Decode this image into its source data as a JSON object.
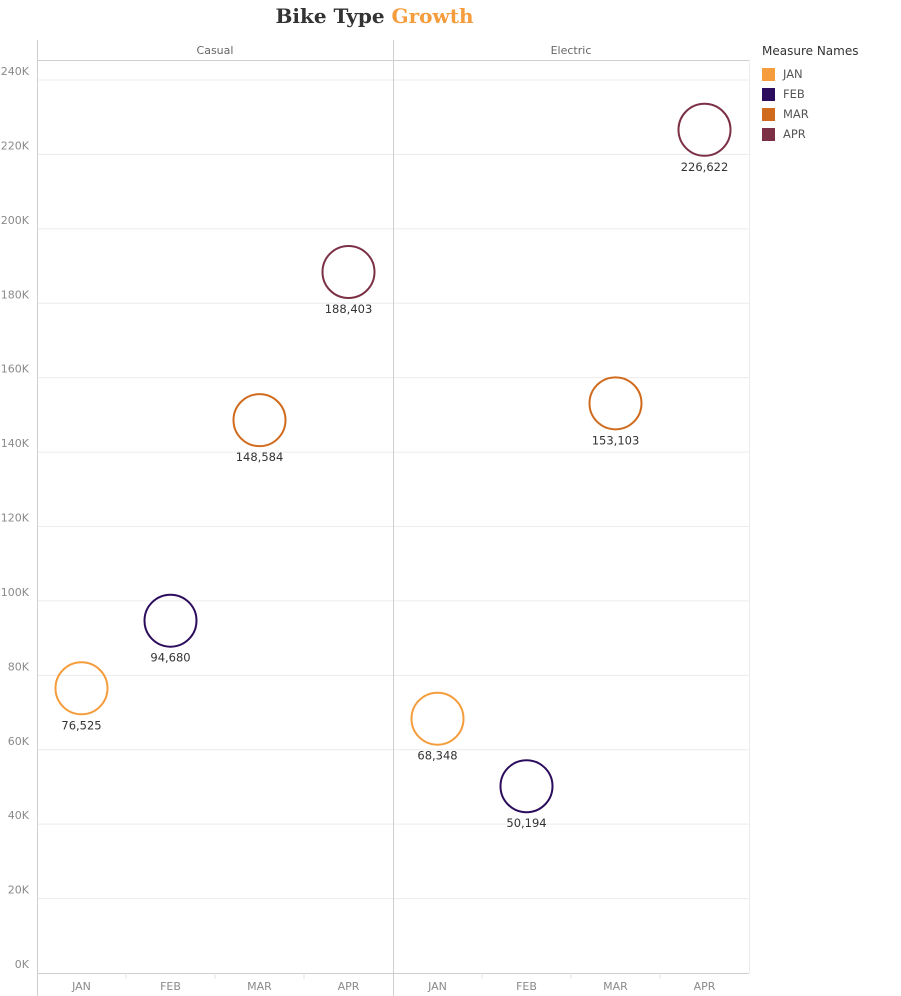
{
  "title": {
    "part1": "Bike Type ",
    "part2": "Growth"
  },
  "legend": {
    "title": "Measure Names",
    "items": [
      {
        "label": "JAN",
        "color": "#f59c3c"
      },
      {
        "label": "FEB",
        "color": "#2c0c5c"
      },
      {
        "label": "MAR",
        "color": "#d06b1e"
      },
      {
        "label": "APR",
        "color": "#7b3045"
      }
    ]
  },
  "chart_data": {
    "type": "scatter",
    "title": "Bike Type Growth",
    "panels": [
      "Casual",
      "Electric"
    ],
    "categories": [
      "JAN",
      "FEB",
      "MAR",
      "APR"
    ],
    "ylim": [
      0,
      240000
    ],
    "yticks": [
      0,
      20000,
      40000,
      60000,
      80000,
      100000,
      120000,
      140000,
      160000,
      180000,
      200000,
      220000,
      240000
    ],
    "ytick_labels": [
      "0K",
      "20K",
      "40K",
      "60K",
      "80K",
      "100K",
      "120K",
      "140K",
      "160K",
      "180K",
      "200K",
      "220K",
      "240K"
    ],
    "grid": true,
    "legend_position": "right",
    "series": [
      {
        "name": "JAN",
        "color": "#f59c3c",
        "values": [
          76525,
          68348
        ],
        "labels": [
          "76,525",
          "68,348"
        ]
      },
      {
        "name": "FEB",
        "color": "#2c0c5c",
        "values": [
          94680,
          50194
        ],
        "labels": [
          "94,680",
          "50,194"
        ]
      },
      {
        "name": "MAR",
        "color": "#d06b1e",
        "values": [
          148584,
          153103
        ],
        "labels": [
          "148,584",
          "153,103"
        ]
      },
      {
        "name": "APR",
        "color": "#7b3045",
        "values": [
          188403,
          226622
        ],
        "labels": [
          "188,403",
          "226,622"
        ]
      }
    ]
  }
}
